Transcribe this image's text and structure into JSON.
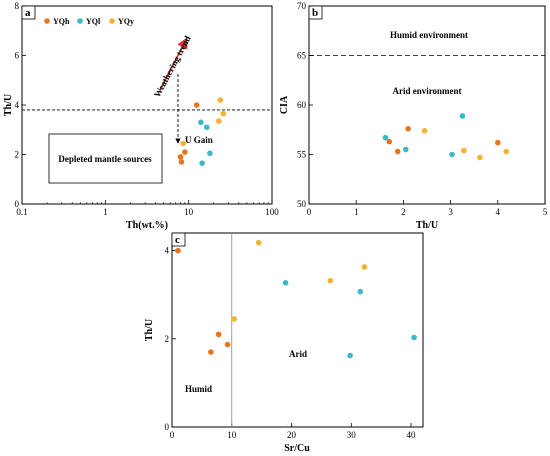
{
  "colors": {
    "YQh": "#e8741c",
    "YQl": "#3bb8c9",
    "YQy": "#f5b331",
    "arrow": "#e53030"
  },
  "chart_data": [
    {
      "panel": "a",
      "type": "scatter",
      "xscale": "log",
      "xlabel": "Th(wt.%)",
      "ylabel": "Th/U",
      "xlim": [
        0.1,
        100
      ],
      "ylim": [
        0,
        8
      ],
      "xticks": [
        "0.1",
        "1",
        "10",
        "100"
      ],
      "yticks": [
        "0",
        "2",
        "4",
        "6",
        "8"
      ],
      "legend": [
        "YQh",
        "YQl",
        "YQy"
      ],
      "hline": 3.8,
      "annotations": {
        "weathering": "Weathering trend",
        "ugain": "U Gain",
        "depleted": "Depleted mantle sources"
      },
      "series": [
        {
          "name": "YQh",
          "points": [
            [
              12.5,
              4.0
            ],
            [
              9.0,
              2.1
            ],
            [
              8.0,
              1.9
            ],
            [
              8.2,
              1.7
            ]
          ]
        },
        {
          "name": "YQl",
          "points": [
            [
              14.0,
              3.3
            ],
            [
              16.5,
              3.1
            ],
            [
              18.0,
              2.05
            ],
            [
              14.5,
              1.65
            ]
          ]
        },
        {
          "name": "YQy",
          "points": [
            [
              24.0,
              4.2
            ],
            [
              26.0,
              3.65
            ],
            [
              23.0,
              3.35
            ],
            [
              8.6,
              2.45
            ]
          ]
        }
      ]
    },
    {
      "panel": "b",
      "type": "scatter",
      "xlabel": "Th/U",
      "ylabel": "CIA",
      "xlim": [
        0,
        5
      ],
      "ylim": [
        50,
        70
      ],
      "xticks": [
        "0",
        "1",
        "2",
        "3",
        "4",
        "5"
      ],
      "yticks": [
        "50",
        "55",
        "60",
        "65",
        "70"
      ],
      "hline": 65,
      "annotations": {
        "humid": "Humid environment",
        "arid": "Arid environment"
      },
      "series": [
        {
          "name": "YQh",
          "points": [
            [
              1.7,
              56.3
            ],
            [
              1.88,
              55.3
            ],
            [
              2.1,
              57.6
            ],
            [
              4.0,
              56.2
            ]
          ]
        },
        {
          "name": "YQl",
          "points": [
            [
              1.62,
              56.7
            ],
            [
              2.05,
              55.5
            ],
            [
              3.03,
              55.0
            ],
            [
              3.25,
              58.9
            ]
          ]
        },
        {
          "name": "YQy",
          "points": [
            [
              2.45,
              57.4
            ],
            [
              3.28,
              55.4
            ],
            [
              3.62,
              54.7
            ],
            [
              4.18,
              55.3
            ]
          ]
        }
      ]
    },
    {
      "panel": "c",
      "type": "scatter",
      "xlabel": "Sr/Cu",
      "ylabel": "Th/U",
      "xlim": [
        0,
        42
      ],
      "ylim": [
        0,
        4.4
      ],
      "xticks": [
        "0",
        "10",
        "20",
        "30",
        "40"
      ],
      "yticks": [
        "0",
        "2",
        "4"
      ],
      "vline": 10,
      "annotations": {
        "humid": "Humid",
        "arid": "Arid"
      },
      "series": [
        {
          "name": "YQh",
          "points": [
            [
              1.0,
              4.0
            ],
            [
              7.8,
              2.1
            ],
            [
              6.5,
              1.7
            ],
            [
              9.3,
              1.87
            ]
          ]
        },
        {
          "name": "YQl",
          "points": [
            [
              19.0,
              3.27
            ],
            [
              31.5,
              3.07
            ],
            [
              29.8,
              1.62
            ],
            [
              40.5,
              2.03
            ]
          ]
        },
        {
          "name": "YQy",
          "points": [
            [
              14.5,
              4.18
            ],
            [
              26.5,
              3.32
            ],
            [
              32.2,
              3.63
            ],
            [
              10.4,
              2.45
            ]
          ]
        }
      ]
    }
  ]
}
